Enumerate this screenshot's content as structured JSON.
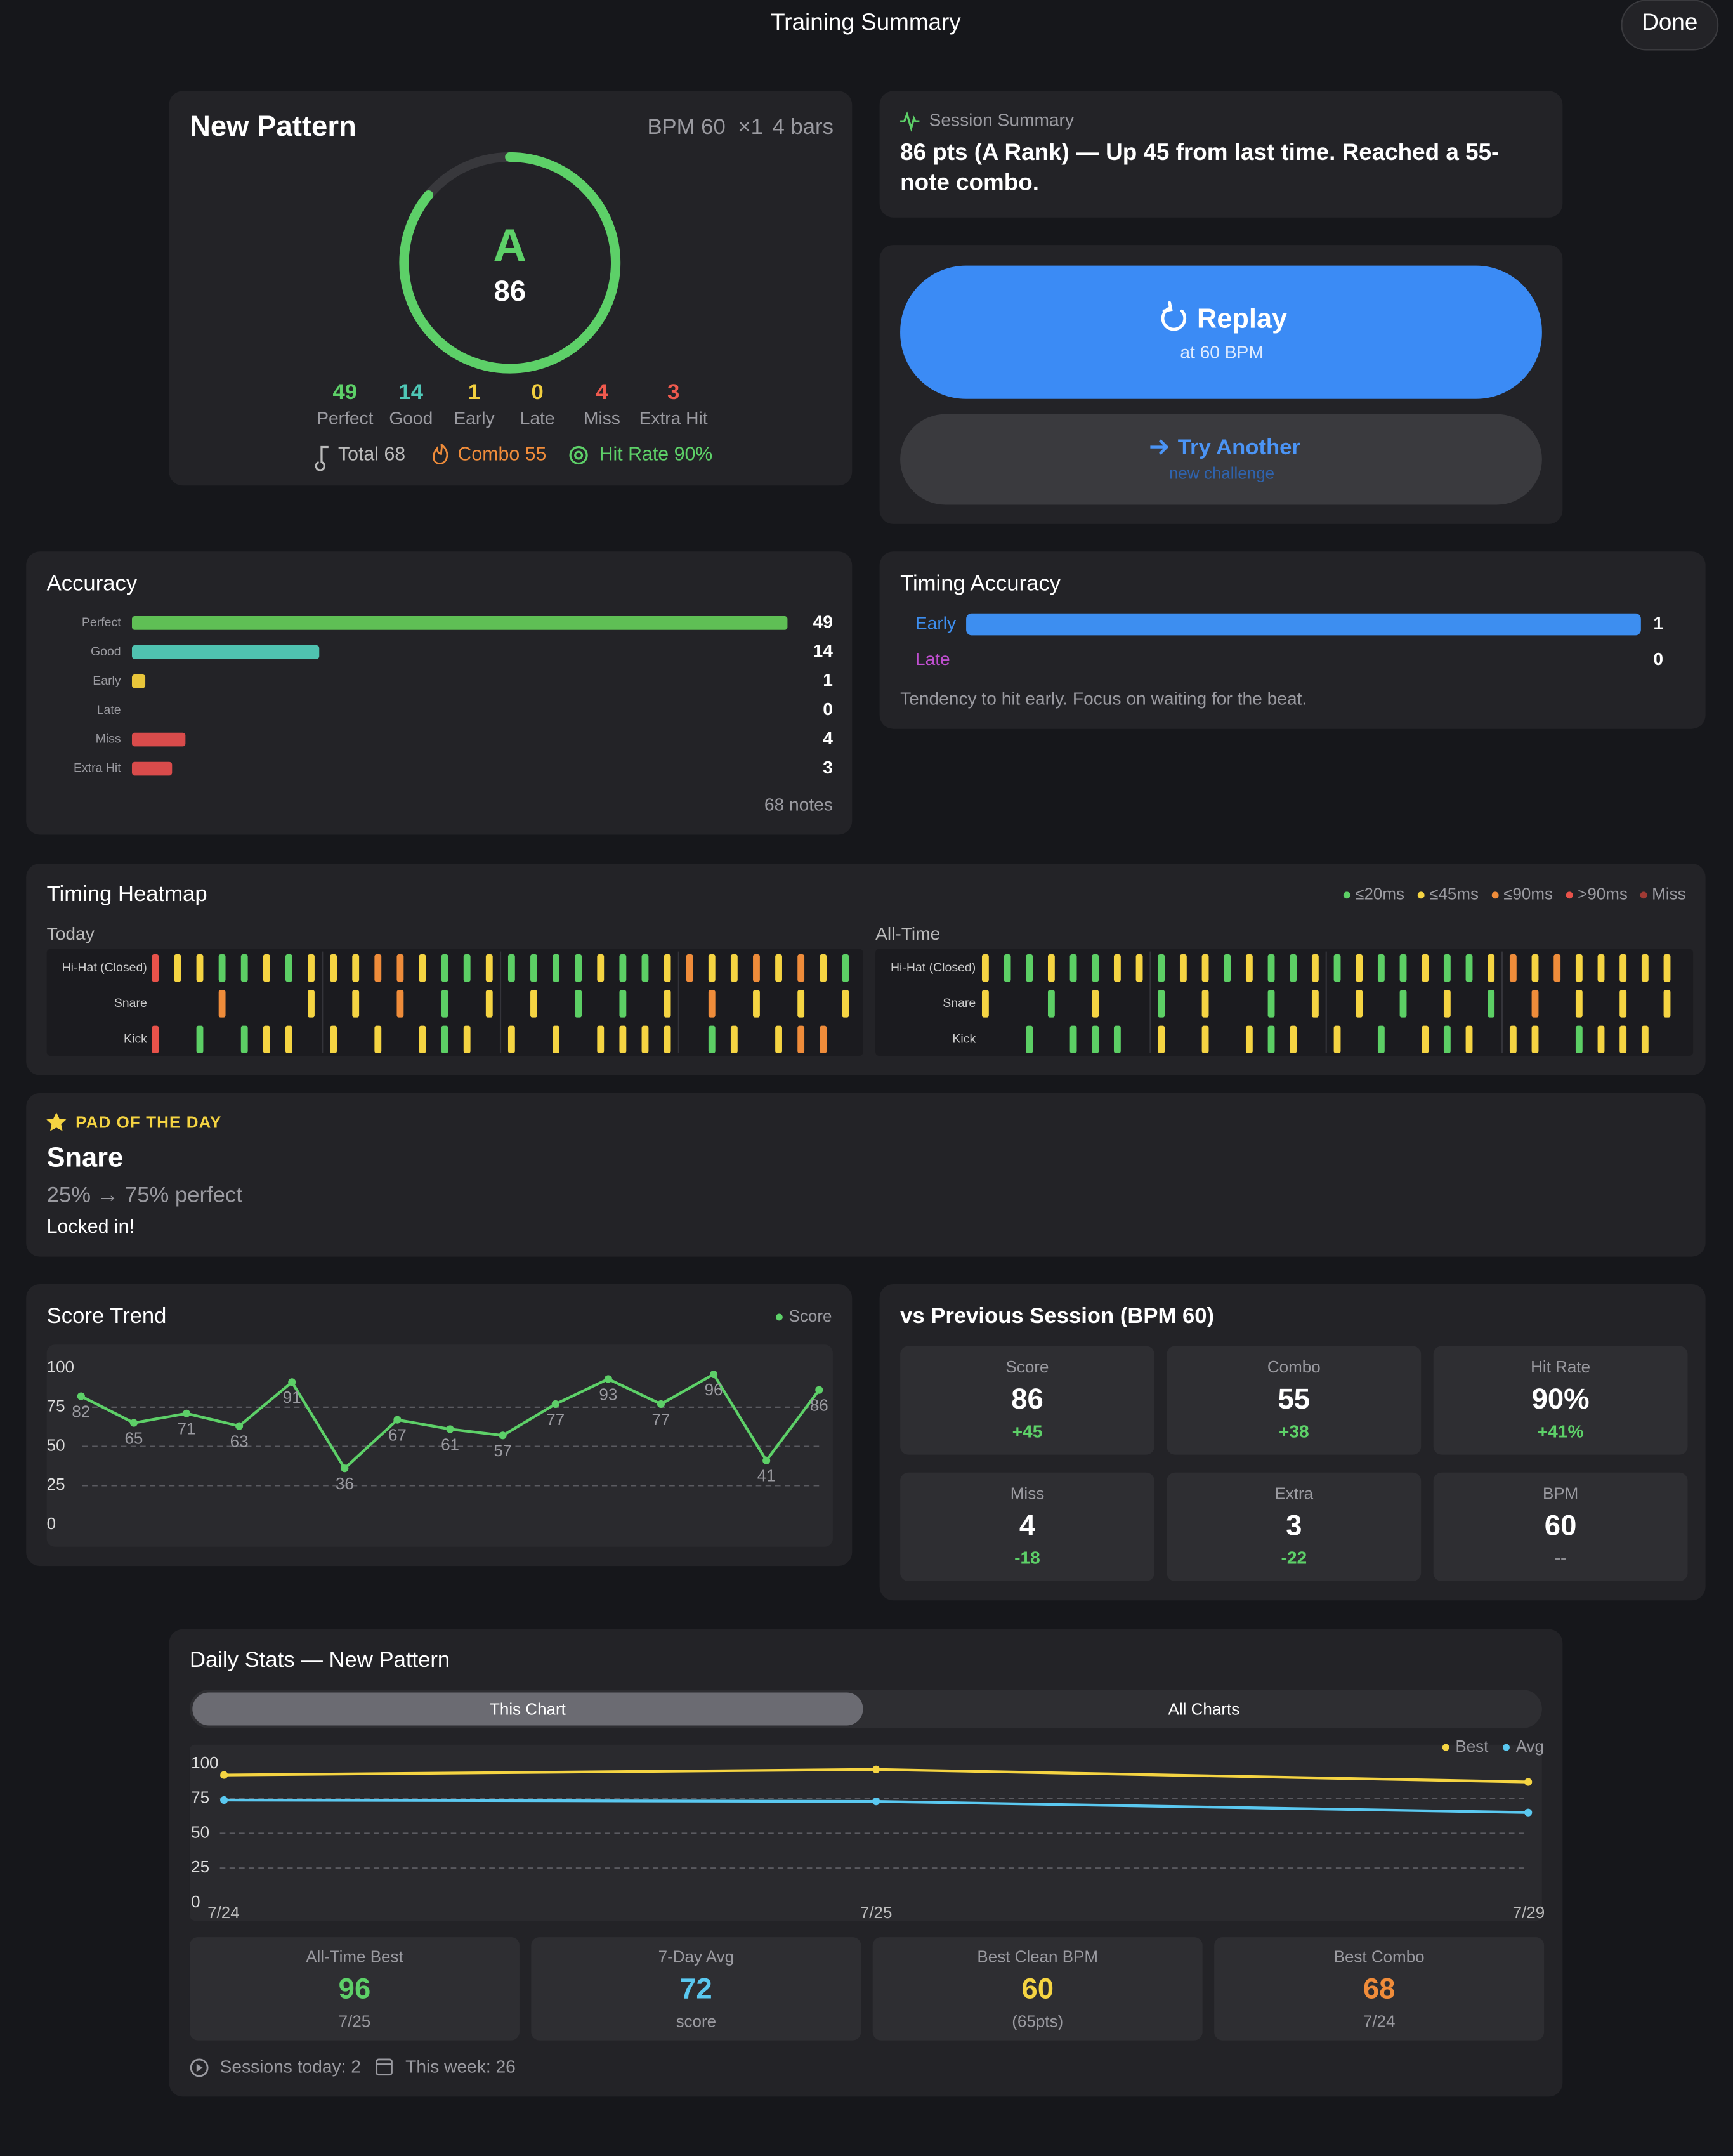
{
  "header": {
    "title": "Training Summary",
    "done": "Done"
  },
  "pattern": {
    "title": "New Pattern",
    "bpm": "BPM 60",
    "multiplier": "×1",
    "bars": "4 bars",
    "rank": "A",
    "score": 86,
    "lim": [
      0,
      100
    ],
    "ring_color": "#5dd068",
    "counts": [
      {
        "value": 49,
        "label": "Perfect",
        "color": "#5dd068"
      },
      {
        "value": 14,
        "label": "Good",
        "color": "#4fc7b6"
      },
      {
        "value": 1,
        "label": "Early",
        "color": "#f2cf3f"
      },
      {
        "value": 0,
        "label": "Late",
        "color": "#f2cf3f"
      },
      {
        "value": 4,
        "label": "Miss",
        "color": "#ef5a4e"
      },
      {
        "value": 3,
        "label": "Extra Hit",
        "color": "#ef5a4e"
      }
    ],
    "total": "Total 68",
    "combo": "Combo 55",
    "hit_rate": "Hit Rate 90%"
  },
  "session_summary": {
    "label": "Session Summary",
    "text": "86 pts (A Rank) — Up 45 from last time. Reached a 55-note combo."
  },
  "replay": {
    "title": "Replay",
    "subtitle": "at 60 BPM"
  },
  "try_another": {
    "title": "Try Another",
    "subtitle": "new challenge"
  },
  "accuracy": {
    "title": "Accuracy",
    "categories": [
      "Perfect",
      "Good",
      "Early",
      "Late",
      "Miss",
      "Extra Hit"
    ],
    "values": [
      49,
      14,
      1,
      0,
      4,
      3
    ],
    "colors": [
      "#5fbf55",
      "#4fc2b0",
      "#e8c53a",
      "#8e8e93",
      "#d94b4b",
      "#d94b4b"
    ],
    "footer": "68 notes"
  },
  "timing_accuracy": {
    "title": "Timing Accuracy",
    "categories": [
      "Early",
      "Late"
    ],
    "values": [
      1,
      0
    ],
    "colors": [
      "#3d8ef0",
      "#c04fd0"
    ],
    "note": "Tendency to hit early. Focus on waiting for the beat."
  },
  "heatmap": {
    "title": "Timing Heatmap",
    "legend": [
      {
        "label": "≤20ms",
        "color": "#5ccf65"
      },
      {
        "label": "≤45ms",
        "color": "#f5d442"
      },
      {
        "label": "≤90ms",
        "color": "#ef8c3a"
      },
      {
        "label": ">90ms",
        "color": "#e8524a"
      },
      {
        "label": "Miss",
        "color": "#a03a34"
      }
    ],
    "panels": [
      {
        "title": "Today",
        "rows": [
          {
            "name": "Hi-Hat (Closed)",
            "cells": [
              3,
              1,
              1,
              0,
              0,
              1,
              0,
              1,
              1,
              1,
              2,
              2,
              1,
              0,
              0,
              1,
              0,
              0,
              0,
              0,
              1,
              0,
              0,
              1,
              2,
              1,
              1,
              2,
              1,
              2,
              1,
              0
            ]
          },
          {
            "name": "Snare",
            "cells": [
              null,
              null,
              null,
              2,
              null,
              null,
              null,
              1,
              null,
              1,
              null,
              2,
              null,
              0,
              null,
              1,
              null,
              1,
              null,
              0,
              null,
              0,
              null,
              1,
              null,
              2,
              null,
              1,
              null,
              1,
              null,
              1
            ]
          },
          {
            "name": "Kick",
            "cells": [
              3,
              null,
              0,
              null,
              0,
              1,
              1,
              null,
              1,
              null,
              1,
              null,
              1,
              0,
              1,
              null,
              1,
              null,
              1,
              null,
              1,
              1,
              1,
              1,
              null,
              0,
              1,
              null,
              1,
              2,
              2,
              null
            ]
          }
        ]
      },
      {
        "title": "All-Time",
        "rows": [
          {
            "name": "Hi-Hat (Closed)",
            "cells": [
              1,
              0,
              0,
              1,
              0,
              0,
              1,
              1,
              0,
              1,
              1,
              0,
              1,
              0,
              0,
              1,
              0,
              1,
              0,
              0,
              1,
              0,
              0,
              1,
              2,
              1,
              2,
              1,
              1,
              1,
              1,
              1
            ]
          },
          {
            "name": "Snare",
            "cells": [
              1,
              null,
              null,
              0,
              null,
              1,
              null,
              null,
              0,
              null,
              1,
              null,
              null,
              0,
              null,
              1,
              null,
              1,
              null,
              0,
              null,
              1,
              null,
              0,
              null,
              2,
              null,
              1,
              null,
              1,
              null,
              1
            ]
          },
          {
            "name": "Kick",
            "cells": [
              null,
              null,
              0,
              null,
              0,
              0,
              0,
              null,
              1,
              null,
              1,
              null,
              1,
              0,
              1,
              null,
              1,
              null,
              0,
              null,
              1,
              0,
              1,
              null,
              1,
              1,
              null,
              0,
              1,
              1,
              1,
              null
            ]
          }
        ]
      }
    ]
  },
  "pad_of_the_day": {
    "label": "PAD OF THE DAY",
    "pad": "Snare",
    "change": "25% → 75% perfect",
    "note": "Locked in!"
  },
  "score_trend": {
    "type": "line",
    "title": "Score Trend",
    "series": [
      {
        "name": "Score",
        "color": "#5dd068",
        "values": [
          82,
          65,
          71,
          63,
          91,
          36,
          67,
          61,
          57,
          77,
          93,
          77,
          96,
          41,
          86
        ]
      }
    ],
    "ylim": [
      0,
      100
    ],
    "yticks": [
      0,
      25,
      50,
      75,
      100
    ],
    "grid": true
  },
  "vs_previous": {
    "title": "vs Previous Session  (BPM 60)",
    "cells": [
      {
        "label": "Score",
        "value": "86",
        "delta": "+45",
        "color": "#5dd068"
      },
      {
        "label": "Combo",
        "value": "55",
        "delta": "+38",
        "color": "#5dd068"
      },
      {
        "label": "Hit Rate",
        "value": "90%",
        "delta": "+41%",
        "color": "#5dd068"
      },
      {
        "label": "Miss",
        "value": "4",
        "delta": "-18",
        "color": "#5dd068"
      },
      {
        "label": "Extra",
        "value": "3",
        "delta": "-22",
        "color": "#5dd068"
      },
      {
        "label": "BPM",
        "value": "60",
        "delta": "--",
        "color": "#8e8e93"
      }
    ]
  },
  "daily_stats": {
    "title": "Daily Stats — New Pattern",
    "tabs": [
      "This Chart",
      "All Charts"
    ],
    "chart": {
      "type": "line",
      "categories": [
        "7/24",
        "7/25",
        "7/29"
      ],
      "series": [
        {
          "name": "Best",
          "color": "#f5d442",
          "values": [
            92,
            96,
            87
          ]
        },
        {
          "name": "Avg",
          "color": "#5ac8f0",
          "values": [
            74,
            73,
            65
          ]
        }
      ],
      "ylim": [
        0,
        100
      ],
      "yticks": [
        0,
        25,
        50,
        75,
        100
      ],
      "grid": true
    },
    "cards": [
      {
        "label": "All-Time Best",
        "value": "96",
        "sub": "7/25",
        "color": "#5dd068"
      },
      {
        "label": "7-Day Avg",
        "value": "72",
        "sub": "score",
        "color": "#5ac8f0"
      },
      {
        "label": "Best Clean BPM",
        "value": "60",
        "sub": "(65pts)",
        "color": "#f5d442"
      },
      {
        "label": "Best Combo",
        "value": "68",
        "sub": "7/24",
        "color": "#f08c3a"
      }
    ],
    "sessions_today": "Sessions today: 2",
    "this_week": "This week: 26"
  }
}
